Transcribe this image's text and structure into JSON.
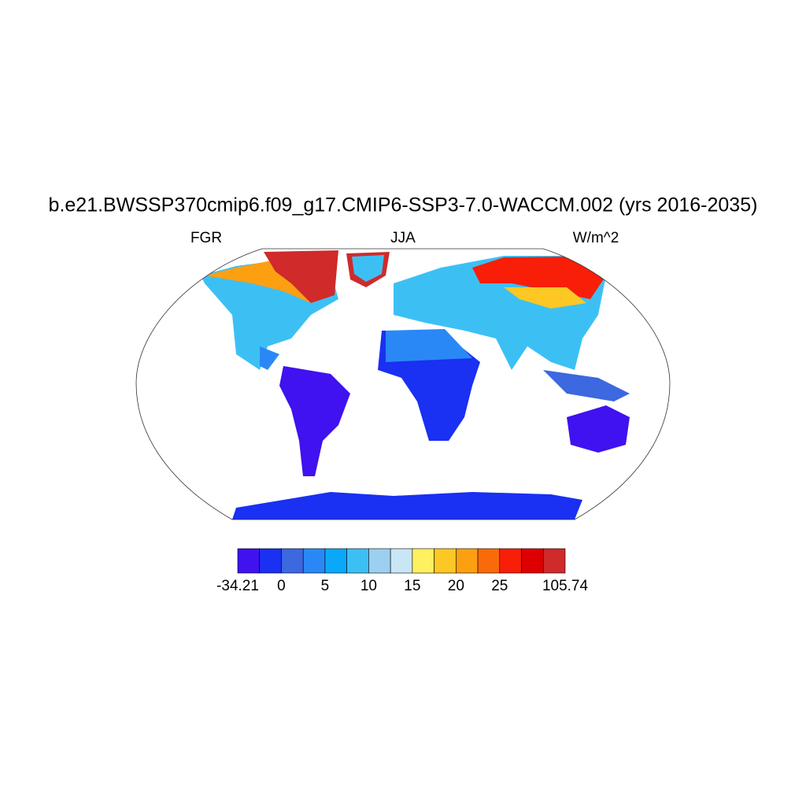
{
  "title": "b.e21.BWSSP370cmip6.f09_g17.CMIP6-SSP3-7.0-WACCM.002 (yrs 2016-2035)",
  "left_label": "FGR",
  "center_label": "JJA",
  "right_label": "W/m^2",
  "colorbar": {
    "colors": [
      "#3f12ef",
      "#1a30f2",
      "#3c68e0",
      "#2a88f6",
      "#0aa8f8",
      "#3cc0f4",
      "#9ccff0",
      "#c9e6f6",
      "#fff060",
      "#fdc824",
      "#fca012",
      "#fb6a0a",
      "#f81e08",
      "#de0000",
      "#d02a2a"
    ],
    "labels": [
      -34.21,
      0,
      5,
      10,
      15,
      20,
      25,
      105.74
    ]
  }
}
